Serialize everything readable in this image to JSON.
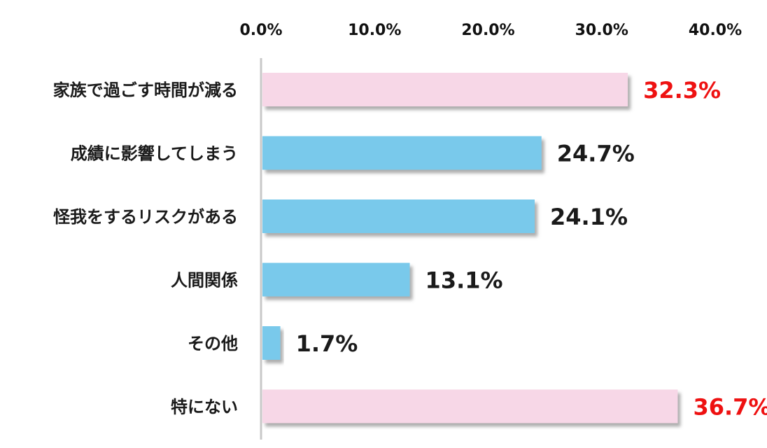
{
  "chart_data": {
    "type": "bar",
    "orientation": "horizontal",
    "categories": [
      "家族で過ごす時間が減る",
      "成績に影響してしまう",
      "怪我をするリスクがある",
      "人間関係",
      "その他",
      "特にない"
    ],
    "values": [
      32.3,
      24.7,
      24.1,
      13.1,
      1.7,
      36.7
    ],
    "value_labels": [
      "32.3%",
      "24.7%",
      "24.1%",
      "13.1%",
      "1.7%",
      "36.7%"
    ],
    "highlighted": [
      true,
      false,
      false,
      false,
      false,
      true
    ],
    "xlim": [
      0,
      40
    ],
    "x_ticks": [
      0,
      10,
      20,
      30,
      40
    ],
    "x_tick_labels": [
      "0.0%",
      "10.0%",
      "20.0%",
      "30.0%",
      "40.0%"
    ],
    "x_axis_position": "top",
    "grid": false,
    "legend": "none",
    "title": "",
    "xlabel": "",
    "ylabel": "",
    "colors": {
      "default_bar": "#79C9EB",
      "highlight_bar": "#F7D7E7",
      "default_label": "#1a1a1a",
      "highlight_label": "#EE1111",
      "axis_line": "#C8C8C8",
      "bar_shadow": "#9a9a9a"
    }
  }
}
